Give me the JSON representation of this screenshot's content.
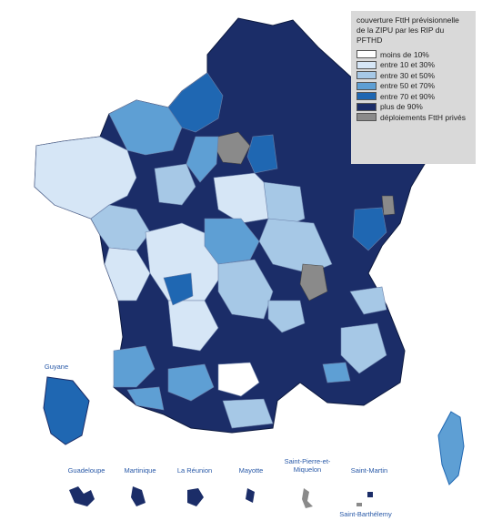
{
  "legend": {
    "title_line1": "couverture FttH prévisionnelle",
    "title_line2": "de la ZIPU par les RIP du PFTHD",
    "items": [
      {
        "label": "moins de 10%",
        "color": "#ffffff"
      },
      {
        "label": "entre 10 et 30%",
        "color": "#d6e6f6"
      },
      {
        "label": "entre 30 et 50%",
        "color": "#a6c8e6"
      },
      {
        "label": "entre 50 et 70%",
        "color": "#5e9fd4"
      },
      {
        "label": "entre 70 et 90%",
        "color": "#1f67b2"
      },
      {
        "label": "plus de 90%",
        "color": "#1b2d68"
      },
      {
        "label": "déploiements FttH privés",
        "color": "#8a8a8a"
      }
    ]
  },
  "territories": {
    "guyane": "Guyane",
    "guadeloupe": "Guadeloupe",
    "martinique": "Martinique",
    "reunion": "La Réunion",
    "mayotte": "Mayotte",
    "spm_line1": "Saint-Pierre-et-",
    "spm_line2": "Miquelon",
    "saint_martin": "Saint-Martin",
    "saint_barthelemy": "Saint-Barthélemy"
  }
}
